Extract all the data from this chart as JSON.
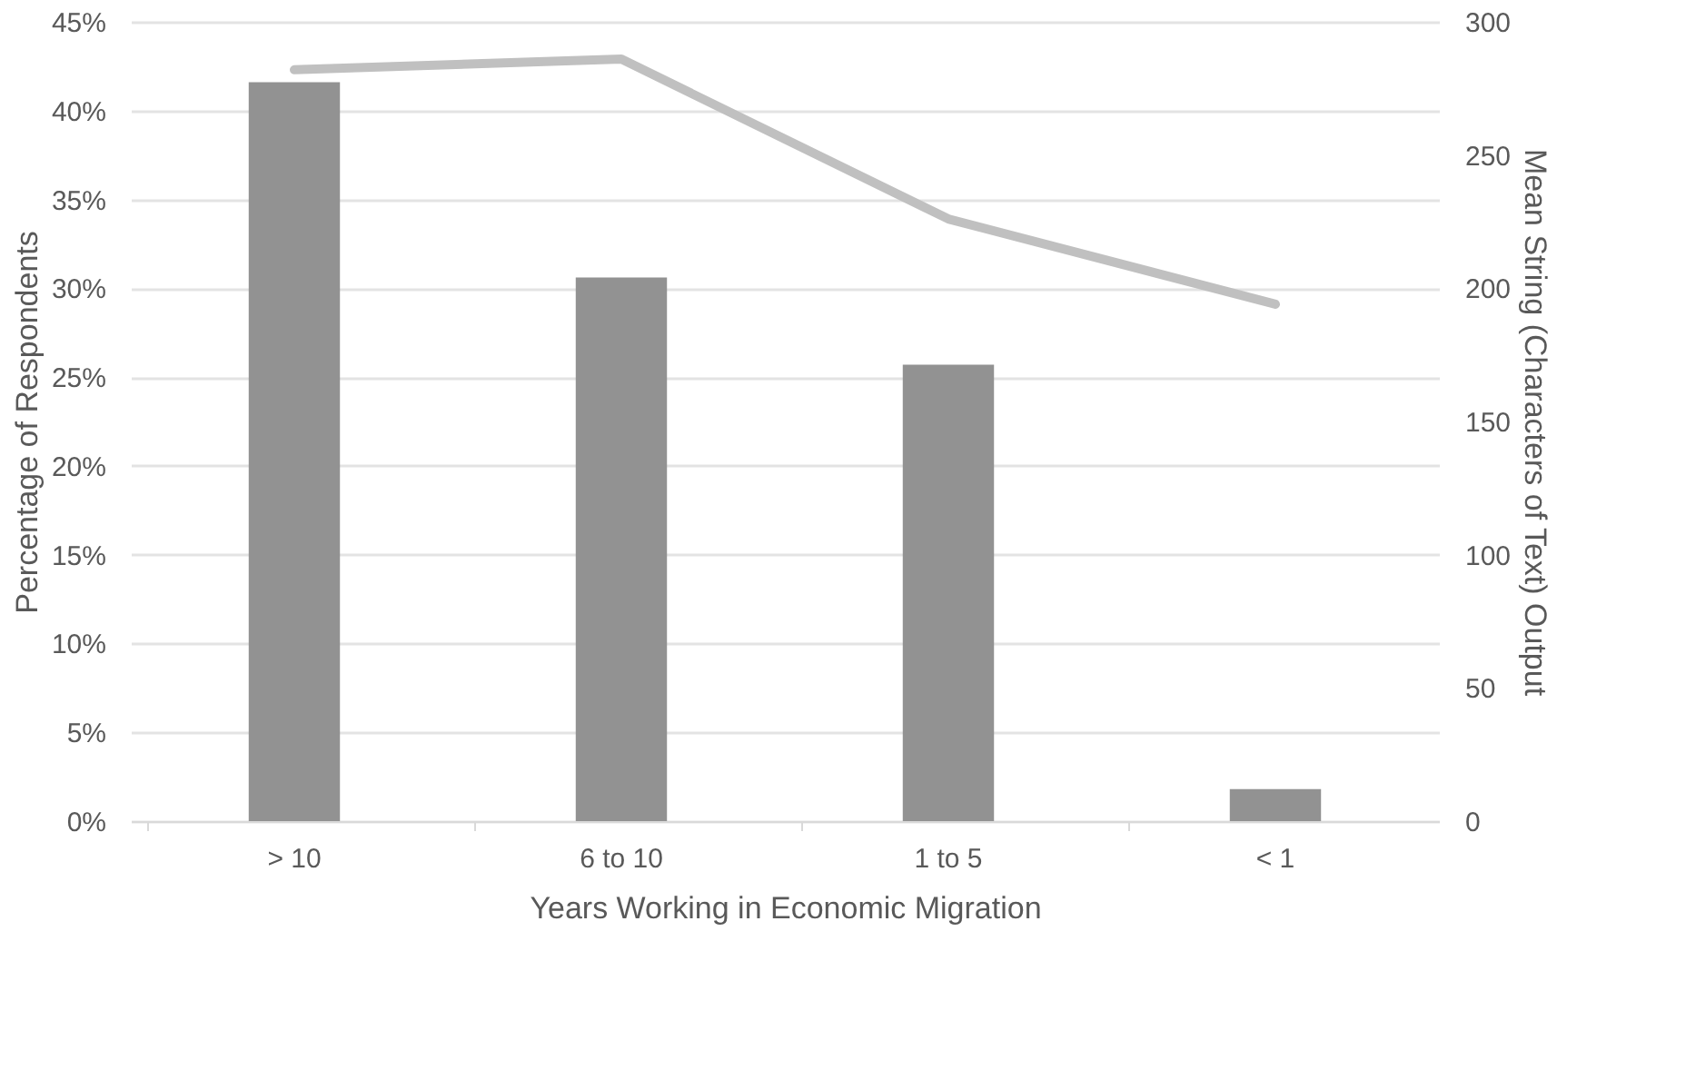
{
  "chart_data": {
    "type": "bar",
    "xlabel": "Years Working in Economic Migration",
    "ylabel": "Percentage of Respondents",
    "y2label": "Mean String (Characters of Text) Output",
    "categories": [
      "> 10",
      "6 to 10",
      "1 to 5",
      "< 1"
    ],
    "series": [
      {
        "color": "#929292",
        "values": [
          41.6,
          30.6,
          25.7,
          1.8
        ]
      },
      {
        "type": "line",
        "axis": "y2",
        "color": "#c0c0c0",
        "values": [
          282,
          286,
          226,
          194
        ]
      }
    ],
    "ylim": [
      0,
      45
    ],
    "yticks": [
      {
        "value": 0,
        "label": "0%"
      },
      {
        "value": 5,
        "label": "5%"
      },
      {
        "value": 10,
        "label": "10%"
      },
      {
        "value": 15,
        "label": "15%"
      },
      {
        "value": 20,
        "label": "20%"
      },
      {
        "value": 25,
        "label": "25%"
      },
      {
        "value": 30,
        "label": "30%"
      },
      {
        "value": 35,
        "label": "35%"
      },
      {
        "value": 40,
        "label": "40%"
      },
      {
        "value": 45,
        "label": "45%"
      }
    ],
    "y2lim": [
      0,
      300
    ],
    "y2ticks": [
      0,
      50,
      100,
      150,
      200,
      250,
      300
    ],
    "grid": "y",
    "marker": "none",
    "line_style": "solid"
  }
}
